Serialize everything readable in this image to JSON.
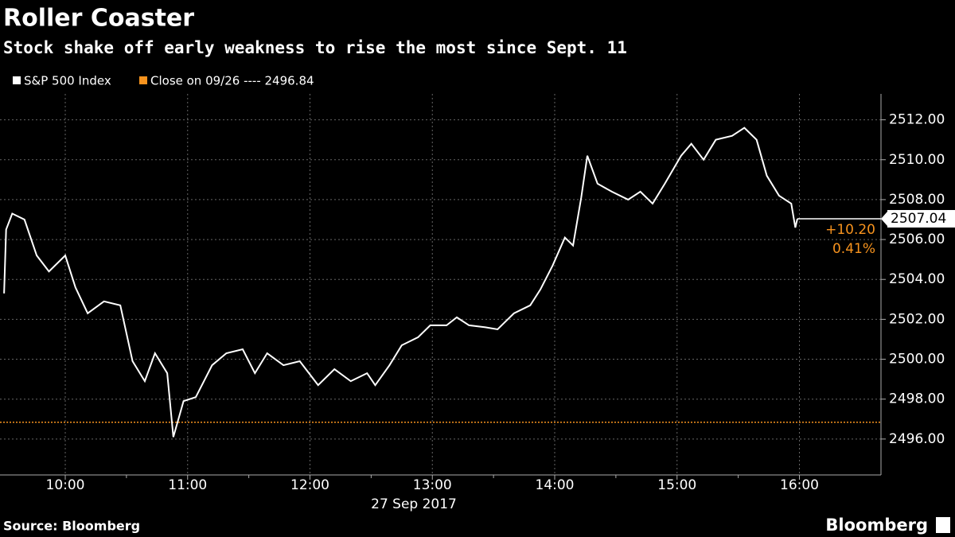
{
  "chart_data": {
    "type": "line",
    "title": "Roller Coaster",
    "subtitle": "Stock shake off early weakness to rise the most since Sept. 11",
    "x_label": "27 Sep 2017",
    "source": "Source: Bloomberg",
    "brand": "Bloomberg",
    "x": [
      570,
      571,
      574,
      580,
      586,
      592,
      600,
      605,
      611,
      619,
      627,
      633,
      639,
      644,
      650,
      653,
      658,
      664,
      672,
      679,
      687,
      693,
      699,
      707,
      715,
      724,
      732,
      740,
      748,
      752,
      759,
      765,
      773,
      779,
      787,
      792,
      798,
      806,
      812,
      820,
      828,
      833,
      839,
      845,
      849,
      853,
      856,
      861,
      868,
      876,
      882,
      888,
      894,
      902,
      907,
      913,
      919,
      927,
      933,
      939,
      944,
      950,
      956,
      958,
      959
    ],
    "series": [
      {
        "name": "S&P 500 Index",
        "color": "#ffffff",
        "values": [
          2503.3,
          2506.5,
          2507.3,
          2507.0,
          2505.2,
          2504.4,
          2505.2,
          2503.6,
          2502.3,
          2502.9,
          2502.7,
          2499.9,
          2498.9,
          2500.3,
          2499.3,
          2496.1,
          2497.9,
          2498.1,
          2499.7,
          2500.3,
          2500.5,
          2499.3,
          2500.3,
          2499.7,
          2499.9,
          2498.7,
          2499.5,
          2498.9,
          2499.3,
          2498.7,
          2499.7,
          2500.7,
          2501.1,
          2501.7,
          2501.7,
          2502.1,
          2501.7,
          2501.6,
          2501.5,
          2502.3,
          2502.7,
          2503.5,
          2504.7,
          2506.1,
          2505.7,
          2508.1,
          2510.2,
          2508.8,
          2508.4,
          2508.0,
          2508.4,
          2507.8,
          2508.8,
          2510.2,
          2510.8,
          2510.0,
          2511.0,
          2511.2,
          2511.6,
          2511.0,
          2509.2,
          2508.2,
          2507.8,
          2506.6,
          2507.04
        ]
      }
    ],
    "reference_line": {
      "name": "Close on 09/26 ---- 2496.84",
      "value": 2496.84,
      "color": "#f7931e"
    },
    "last_value_label": "2507.04",
    "annotations": [
      "+10.20",
      "0.41%"
    ],
    "annotation_color": "#f7931e",
    "xlim": [
      568,
      1000
    ],
    "xticks": [
      {
        "value": 600,
        "label": "10:00"
      },
      {
        "value": 660,
        "label": "11:00"
      },
      {
        "value": 720,
        "label": "12:00"
      },
      {
        "value": 780,
        "label": "13:00"
      },
      {
        "value": 840,
        "label": "14:00"
      },
      {
        "value": 900,
        "label": "15:00"
      },
      {
        "value": 960,
        "label": "16:00"
      }
    ],
    "ylim": [
      2494.2,
      2513.3
    ],
    "yticks": [
      {
        "value": 2496,
        "label": "2496.00"
      },
      {
        "value": 2498,
        "label": "2498.00"
      },
      {
        "value": 2500,
        "label": "2500.00"
      },
      {
        "value": 2502,
        "label": "2502.00"
      },
      {
        "value": 2504,
        "label": "2504.00"
      },
      {
        "value": 2506,
        "label": "2506.00"
      },
      {
        "value": 2508,
        "label": "2508.00"
      },
      {
        "value": 2510,
        "label": "2510.00"
      },
      {
        "value": 2512,
        "label": "2512.00"
      }
    ],
    "grid": true
  }
}
